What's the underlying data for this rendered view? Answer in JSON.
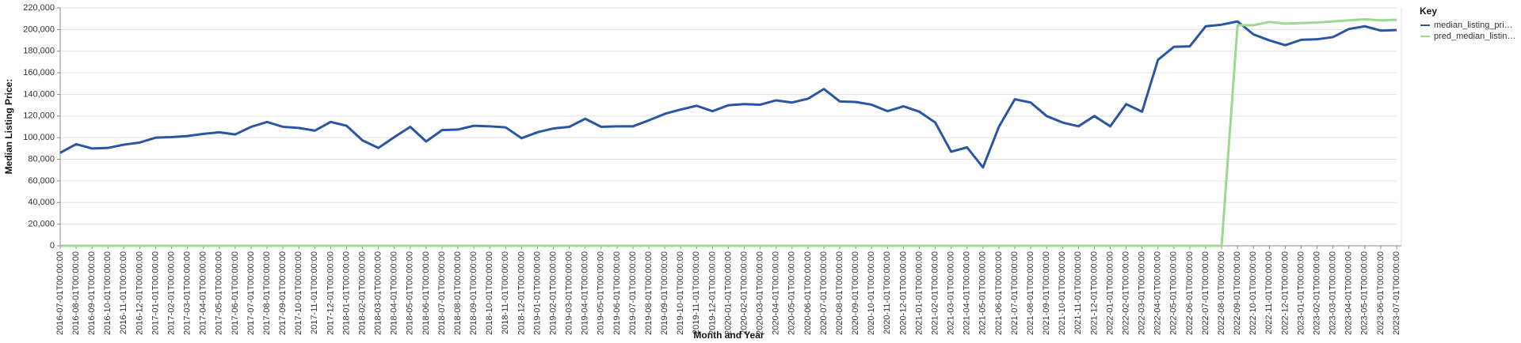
{
  "chart_data": {
    "type": "line",
    "x_label": "Month and Year",
    "y_label": "Median Listing Price:",
    "legend_title": "Key",
    "categories": [
      "2016-07-01T00:00:00",
      "2016-08-01T00:00:00",
      "2016-09-01T00:00:00",
      "2016-10-01T00:00:00",
      "2016-11-01T00:00:00",
      "2016-12-01T00:00:00",
      "2017-01-01T00:00:00",
      "2017-02-01T00:00:00",
      "2017-03-01T00:00:00",
      "2017-04-01T00:00:00",
      "2017-05-01T00:00:00",
      "2017-06-01T00:00:00",
      "2017-07-01T00:00:00",
      "2017-08-01T00:00:00",
      "2017-09-01T00:00:00",
      "2017-10-01T00:00:00",
      "2017-11-01T00:00:00",
      "2017-12-01T00:00:00",
      "2018-01-01T00:00:00",
      "2018-02-01T00:00:00",
      "2018-03-01T00:00:00",
      "2018-04-01T00:00:00",
      "2018-05-01T00:00:00",
      "2018-06-01T00:00:00",
      "2018-07-01T00:00:00",
      "2018-08-01T00:00:00",
      "2018-09-01T00:00:00",
      "2018-10-01T00:00:00",
      "2018-11-01T00:00:00",
      "2018-12-01T00:00:00",
      "2019-01-01T00:00:00",
      "2019-02-01T00:00:00",
      "2019-03-01T00:00:00",
      "2019-04-01T00:00:00",
      "2019-05-01T00:00:00",
      "2019-06-01T00:00:00",
      "2019-07-01T00:00:00",
      "2019-08-01T00:00:00",
      "2019-09-01T00:00:00",
      "2019-10-01T00:00:00",
      "2019-11-01T00:00:00",
      "2019-12-01T00:00:00",
      "2020-01-01T00:00:00",
      "2020-02-01T00:00:00",
      "2020-03-01T00:00:00",
      "2020-04-01T00:00:00",
      "2020-05-01T00:00:00",
      "2020-06-01T00:00:00",
      "2020-07-01T00:00:00",
      "2020-08-01T00:00:00",
      "2020-09-01T00:00:00",
      "2020-10-01T00:00:00",
      "2020-11-01T00:00:00",
      "2020-12-01T00:00:00",
      "2021-01-01T00:00:00",
      "2021-02-01T00:00:00",
      "2021-03-01T00:00:00",
      "2021-04-01T00:00:00",
      "2021-05-01T00:00:00",
      "2021-06-01T00:00:00",
      "2021-07-01T00:00:00",
      "2021-08-01T00:00:00",
      "2021-09-01T00:00:00",
      "2021-10-01T00:00:00",
      "2021-11-01T00:00:00",
      "2021-12-01T00:00:00",
      "2022-01-01T00:00:00",
      "2022-02-01T00:00:00",
      "2022-03-01T00:00:00",
      "2022-04-01T00:00:00",
      "2022-05-01T00:00:00",
      "2022-06-01T00:00:00",
      "2022-07-01T00:00:00",
      "2022-08-01T00:00:00",
      "2022-09-01T00:00:00",
      "2022-10-01T00:00:00",
      "2022-11-01T00:00:00",
      "2022-12-01T00:00:00",
      "2023-01-01T00:00:00",
      "2023-02-01T00:00:00",
      "2023-03-01T00:00:00",
      "2023-04-01T00:00:00",
      "2023-05-01T00:00:00",
      "2023-06-01T00:00:00",
      "2023-07-01T00:00:00"
    ],
    "series": [
      {
        "name": "median_listing_pri…",
        "color": "#2a55a3",
        "values": [
          86000,
          94000,
          90000,
          90500,
          93500,
          95500,
          100000,
          100500,
          101500,
          103500,
          105000,
          103000,
          110000,
          114500,
          110000,
          109000,
          106500,
          114500,
          111000,
          97500,
          90500,
          100500,
          110000,
          96500,
          107000,
          107500,
          111000,
          110500,
          109500,
          99500,
          105000,
          108500,
          110000,
          117500,
          110000,
          110500,
          110500,
          116000,
          122000,
          126000,
          129500,
          124500,
          130000,
          131000,
          130500,
          134500,
          132500,
          136000,
          145000,
          133500,
          133000,
          130500,
          124500,
          129000,
          124000,
          114000,
          87000,
          91000,
          72500,
          110000,
          135500,
          132500,
          120000,
          114000,
          110500,
          120000,
          110500,
          131000,
          124000,
          172000,
          184000,
          184500,
          203000,
          204500,
          207500,
          195500,
          190000,
          185500,
          190500,
          191000,
          193000,
          200500,
          203000,
          199000,
          199500
        ]
      },
      {
        "name": "pred_median_listin…",
        "color": "#9bd98f",
        "values": [
          0,
          0,
          0,
          0,
          0,
          0,
          0,
          0,
          0,
          0,
          0,
          0,
          0,
          0,
          0,
          0,
          0,
          0,
          0,
          0,
          0,
          0,
          0,
          0,
          0,
          0,
          0,
          0,
          0,
          0,
          0,
          0,
          0,
          0,
          0,
          0,
          0,
          0,
          0,
          0,
          0,
          0,
          0,
          0,
          0,
          0,
          0,
          0,
          0,
          0,
          0,
          0,
          0,
          0,
          0,
          0,
          0,
          0,
          0,
          0,
          0,
          0,
          0,
          0,
          0,
          0,
          0,
          0,
          0,
          0,
          0,
          0,
          0,
          0,
          204000,
          204000,
          207000,
          205500,
          206000,
          206500,
          207500,
          208500,
          209500,
          208500,
          209000
        ]
      }
    ],
    "ylim": [
      0,
      220000
    ],
    "yticks": [
      {
        "value": 0,
        "label": "0"
      },
      {
        "value": 20000,
        "label": "20,000"
      },
      {
        "value": 40000,
        "label": "40,000"
      },
      {
        "value": 60000,
        "label": "60,000"
      },
      {
        "value": 80000,
        "label": "80,000"
      },
      {
        "value": 100000,
        "label": "100,000"
      },
      {
        "value": 120000,
        "label": "120,000"
      },
      {
        "value": 140000,
        "label": "140,000"
      },
      {
        "value": 160000,
        "label": "160,000"
      },
      {
        "value": 180000,
        "label": "180,000"
      },
      {
        "value": 200000,
        "label": "200,000"
      },
      {
        "value": 220000,
        "label": "220,000"
      }
    ],
    "grid": true
  }
}
